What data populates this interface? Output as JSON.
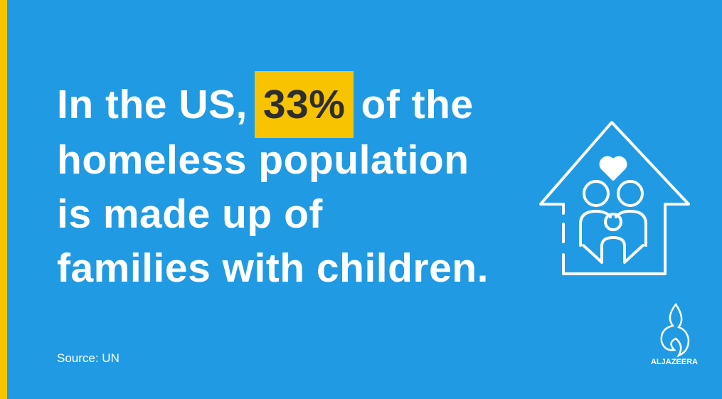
{
  "headline": {
    "before": "In the US,",
    "highlight": "33%",
    "after": "of the",
    "lines": [
      "homeless population",
      "is made up of",
      "families with children."
    ]
  },
  "source": "Source: UN",
  "logo": "ALJAZEERA"
}
